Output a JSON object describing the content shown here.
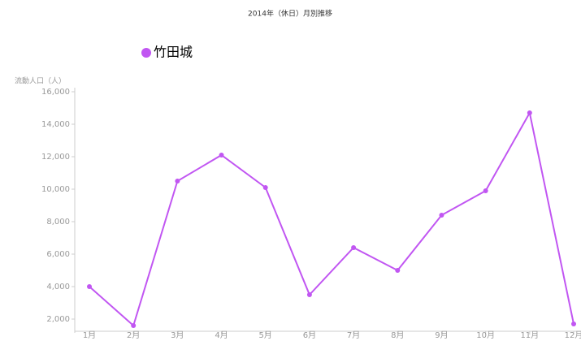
{
  "chart_data": {
    "type": "line",
    "title": "2014年（休日）月別推移",
    "y_label": "流動人口（人）",
    "categories": [
      "1月",
      "2月",
      "3月",
      "4月",
      "5月",
      "6月",
      "7月",
      "8月",
      "9月",
      "10月",
      "11月",
      "12月"
    ],
    "series": [
      {
        "name": "竹田城",
        "color": "#c156f2",
        "values": [
          4000,
          1600,
          10500,
          12100,
          10100,
          3500,
          6400,
          5000,
          8400,
          9900,
          14700,
          1700
        ]
      }
    ],
    "ylim": [
      1400,
      16000
    ],
    "yticks": [
      {
        "value": 2000,
        "label": "2,000"
      },
      {
        "value": 4000,
        "label": "4,000"
      },
      {
        "value": 6000,
        "label": "6,000"
      },
      {
        "value": 8000,
        "label": "8,000"
      },
      {
        "value": 10000,
        "label": "10,000"
      },
      {
        "value": 12000,
        "label": "12,000"
      },
      {
        "value": 14000,
        "label": "14,000"
      },
      {
        "value": 16000,
        "label": "16,000"
      }
    ],
    "legend": "top-left"
  }
}
